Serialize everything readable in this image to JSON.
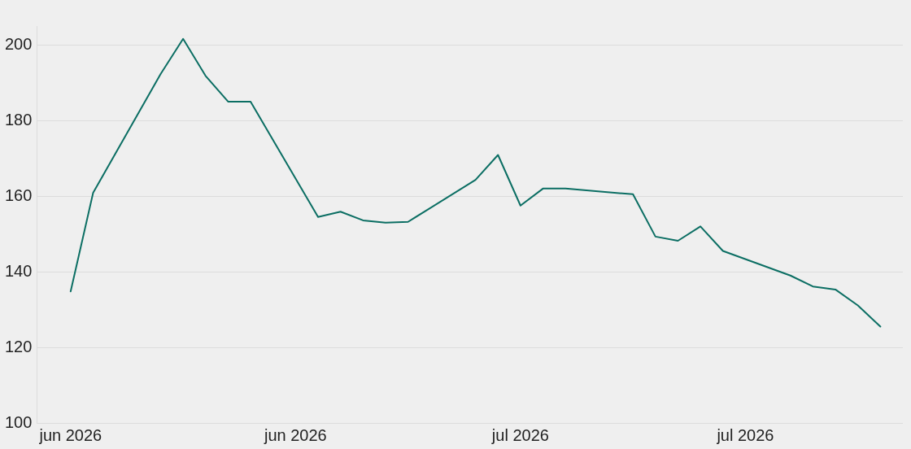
{
  "chart_data": {
    "type": "line",
    "x": [
      "2026-06-11",
      "2026-06-12",
      "2026-06-15",
      "2026-06-16",
      "2026-06-17",
      "2026-06-18",
      "2026-06-19",
      "2026-06-22",
      "2026-06-23",
      "2026-06-24",
      "2026-06-25",
      "2026-06-26",
      "2026-06-29",
      "2026-06-30",
      "2026-07-01",
      "2026-07-02",
      "2026-07-03",
      "2026-07-06",
      "2026-07-07",
      "2026-07-08",
      "2026-07-09",
      "2026-07-10",
      "2026-07-13",
      "2026-07-14",
      "2026-07-15",
      "2026-07-16",
      "2026-07-17"
    ],
    "series": [
      {
        "color": "#0b6e63",
        "values": [
          134.8,
          160.9,
          192.3,
          201.6,
          191.8,
          185,
          185,
          154.5,
          155.9,
          153.6,
          153,
          153.2,
          164.3,
          170.9,
          157.5,
          162,
          162,
          160.5,
          149.3,
          148.2,
          152,
          145.5,
          139,
          136.1,
          135.3,
          131.1,
          125.5
        ]
      }
    ],
    "xlim": [
      "2026-06-09T12:00",
      "2026-07-18"
    ],
    "xticks": [
      {
        "value": "2026-06-11",
        "label": "jun 2026"
      },
      {
        "value": "2026-06-21",
        "label": "jun 2026"
      },
      {
        "value": "2026-07-01",
        "label": "jul 2026"
      },
      {
        "value": "2026-07-11",
        "label": "jul 2026"
      }
    ],
    "ylim": [
      100,
      205
    ],
    "yticks": [
      100,
      120,
      140,
      160,
      180,
      200
    ],
    "grid": "y",
    "legend": false,
    "marker": "none",
    "line_style": "solid"
  }
}
